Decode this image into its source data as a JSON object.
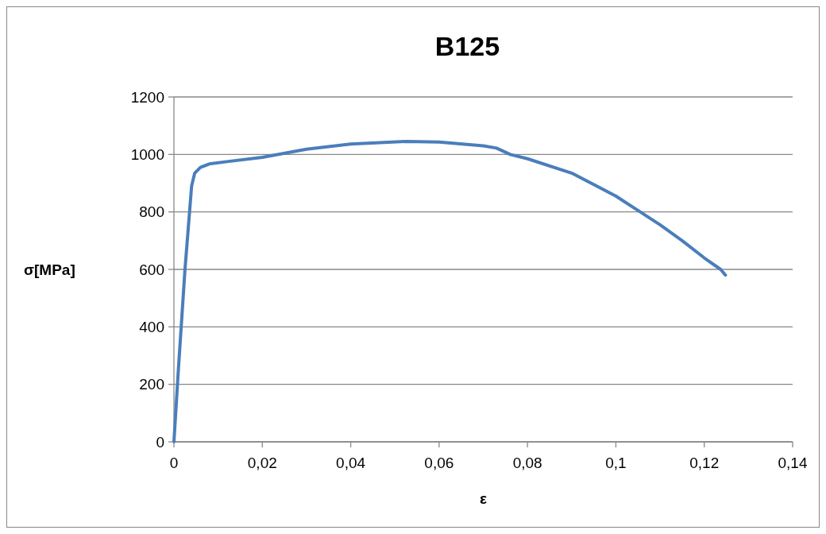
{
  "chart_data": {
    "type": "line",
    "title": "B125",
    "xlabel": "ε",
    "ylabel": "σ[MPa]",
    "xlim": [
      0,
      0.14
    ],
    "xticks": [
      0,
      {
        "value": 0.02,
        "label": "0,02"
      },
      {
        "value": 0.04,
        "label": "0,04"
      },
      {
        "value": 0.06,
        "label": "0,06"
      },
      {
        "value": 0.08,
        "label": "0,08"
      },
      {
        "value": 0.1,
        "label": "0,1"
      },
      {
        "value": 0.12,
        "label": "0,12"
      },
      {
        "value": 0.14,
        "label": "0,14"
      }
    ],
    "ylim": [
      0,
      1200
    ],
    "yticks": [
      0,
      200,
      400,
      600,
      800,
      1000,
      1200
    ],
    "grid": "y",
    "marker": "none",
    "line_style": "solid",
    "series": [
      {
        "color": "#4a7ebb",
        "x": [
          0,
          0.001,
          0.0025,
          0.004,
          0.0047,
          0.006,
          0.008,
          0.012,
          0.02,
          0.03,
          0.04,
          0.0525,
          0.06,
          0.07,
          0.073,
          0.0761,
          0.08,
          0.09,
          0.1,
          0.1055,
          0.11,
          0.115,
          0.12,
          0.1237,
          0.1248
        ],
        "values": [
          0,
          250,
          600,
          890,
          935,
          955,
          967,
          975,
          990,
          1018,
          1036,
          1045,
          1043,
          1030,
          1022,
          1000,
          985,
          935,
          855,
          800,
          755,
          700,
          640,
          600,
          580
        ]
      }
    ]
  }
}
